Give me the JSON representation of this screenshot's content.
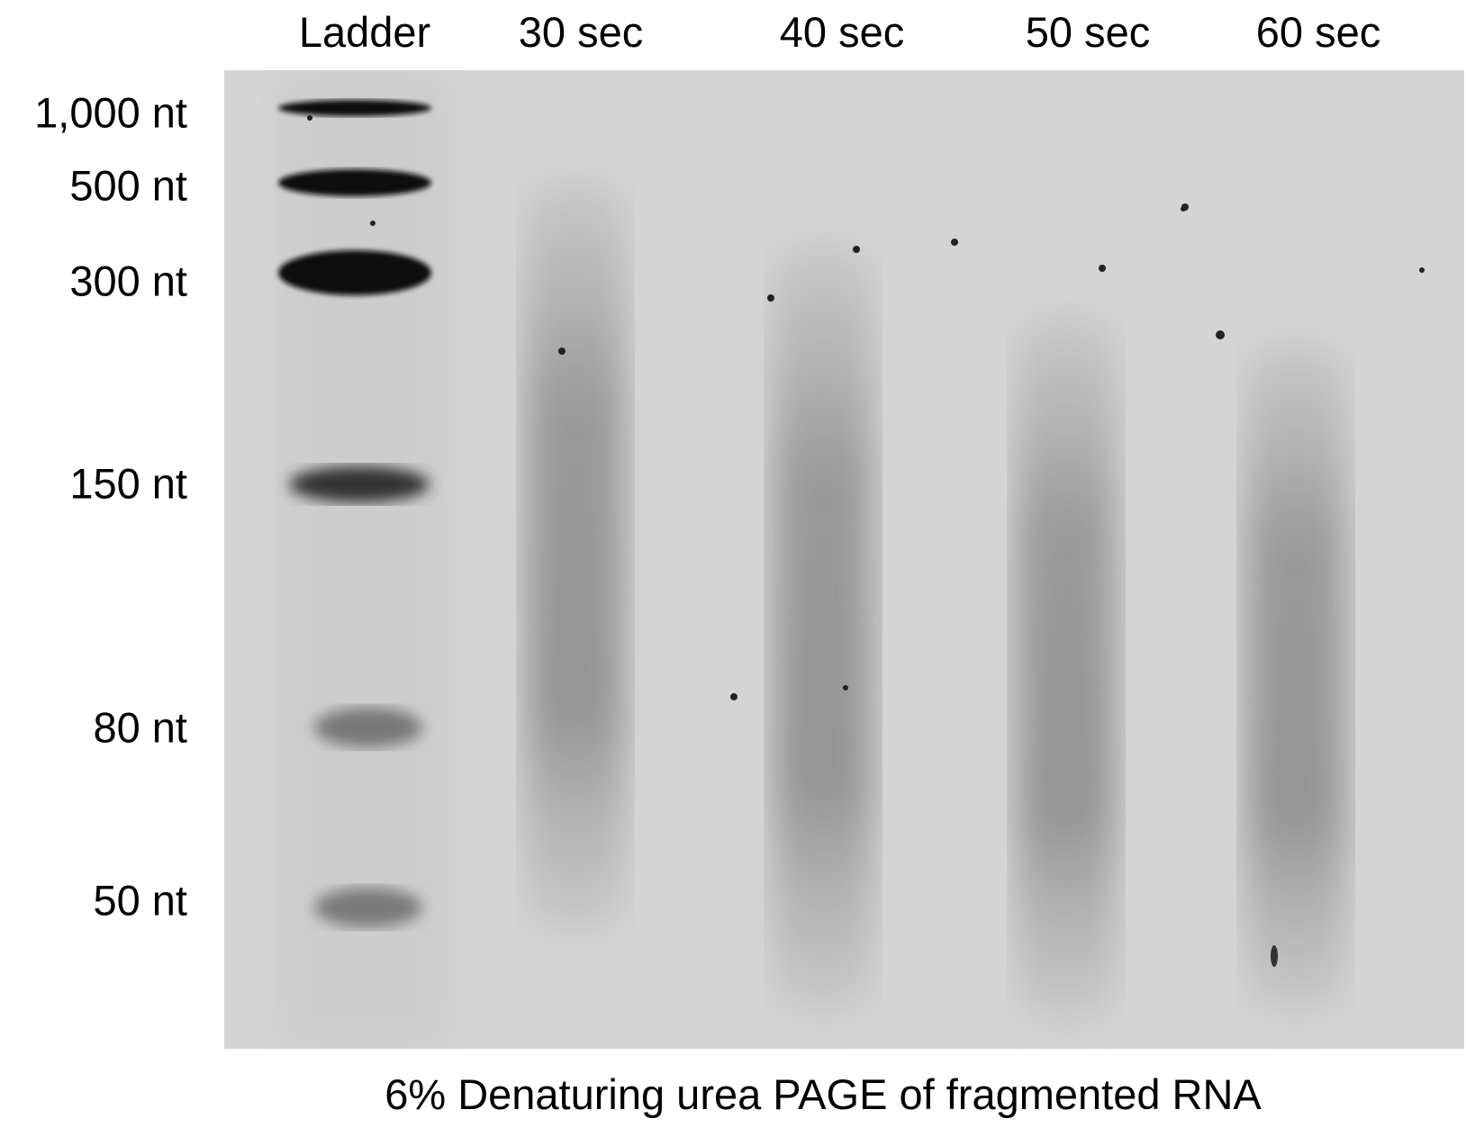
{
  "lanes": [
    {
      "label": "Ladder"
    },
    {
      "label": "30 sec"
    },
    {
      "label": "40 sec"
    },
    {
      "label": "50 sec"
    },
    {
      "label": "60 sec"
    }
  ],
  "ladder_sizes": [
    "1,000 nt",
    "500 nt",
    "300 nt",
    "150 nt",
    "80 nt",
    "50 nt"
  ],
  "caption": "6% Denaturing urea PAGE of fragmented RNA",
  "colors": {
    "gel_background": "#d4d4d4",
    "band": "#111111",
    "smear": "#8a8a8a"
  }
}
